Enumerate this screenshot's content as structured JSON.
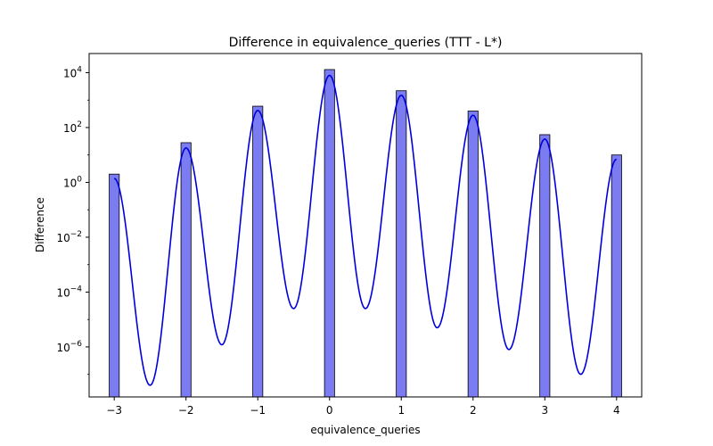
{
  "chart_data": {
    "type": "bar",
    "title": "Difference in equivalence_queries (TTT - L*)",
    "xlabel": "equivalence_queries",
    "ylabel": "Difference",
    "yscale": "log",
    "xlim": [
      -3.35,
      4.35
    ],
    "ylim": [
      1.5e-08,
      50000
    ],
    "x_ticks": [
      -3,
      -2,
      -1,
      0,
      1,
      2,
      3,
      4
    ],
    "x_tick_labels": [
      "−3",
      "−2",
      "−1",
      "0",
      "1",
      "2",
      "3",
      "4"
    ],
    "y_ticks": [
      {
        "value": 1e-06,
        "base": "10",
        "exp": "−6"
      },
      {
        "value": 0.0001,
        "base": "10",
        "exp": "−4"
      },
      {
        "value": 0.01,
        "base": "10",
        "exp": "−2"
      },
      {
        "value": 1,
        "base": "10",
        "exp": "0"
      },
      {
        "value": 100,
        "base": "10",
        "exp": "2"
      },
      {
        "value": 10000,
        "base": "10",
        "exp": "4"
      }
    ],
    "bar_color": "#7b7bf2",
    "kde_color": "#0000dd",
    "bar_width": 0.14,
    "bars": [
      {
        "x": -3,
        "value": 2
      },
      {
        "x": -2,
        "value": 28
      },
      {
        "x": -1,
        "value": 600
      },
      {
        "x": 0,
        "value": 13000
      },
      {
        "x": 1,
        "value": 2200
      },
      {
        "x": 2,
        "value": 400
      },
      {
        "x": 3,
        "value": 55
      },
      {
        "x": 4,
        "value": 10
      }
    ],
    "kde_peaks": [
      {
        "x": -3,
        "value": 1.4
      },
      {
        "x": -2,
        "value": 18
      },
      {
        "x": -1,
        "value": 420
      },
      {
        "x": 0,
        "value": 8000
      },
      {
        "x": 1,
        "value": 1500
      },
      {
        "x": 2,
        "value": 280
      },
      {
        "x": 3,
        "value": 38
      },
      {
        "x": 4,
        "value": 7
      }
    ],
    "kde_troughs": [
      {
        "x": -2.5,
        "value": 4e-08
      },
      {
        "x": -1.5,
        "value": 1.2e-06
      },
      {
        "x": -0.5,
        "value": 2.5e-05
      },
      {
        "x": 0.5,
        "value": 2.5e-05
      },
      {
        "x": 1.5,
        "value": 5e-06
      },
      {
        "x": 2.5,
        "value": 8e-07
      },
      {
        "x": 3.5,
        "value": 1e-07
      }
    ]
  }
}
